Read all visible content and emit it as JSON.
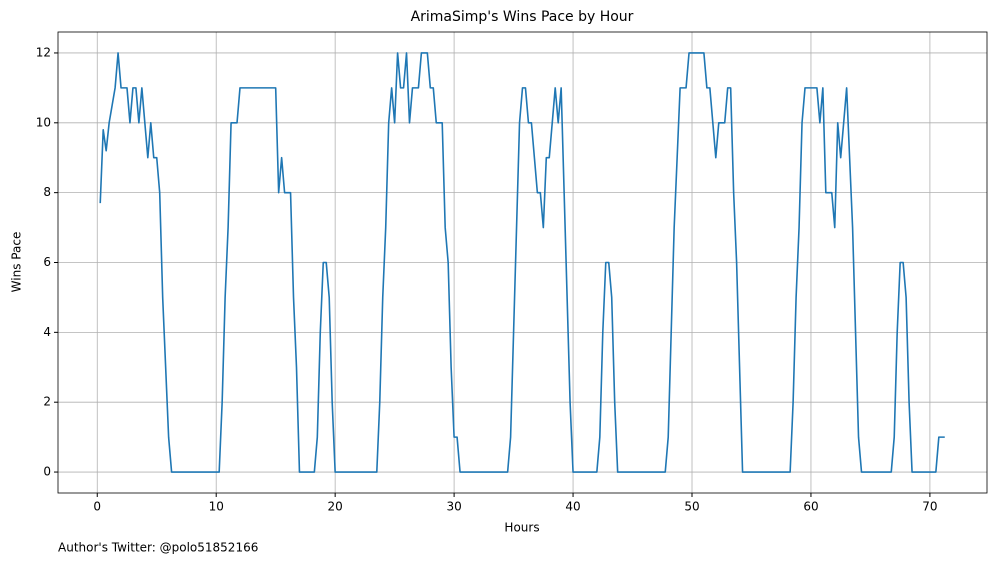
{
  "chart_data": {
    "type": "line",
    "title": "ArimaSimp's Wins Pace by Hour",
    "xlabel": "Hours",
    "ylabel": "Wins Pace",
    "footer": "Author's Twitter: @polo51852166",
    "color": "#1f77b4",
    "grid": true,
    "xlim": [
      -3.3,
      74.8
    ],
    "ylim": [
      -0.6,
      12.6
    ],
    "xticks": [
      0,
      10,
      20,
      30,
      40,
      50,
      60,
      70
    ],
    "yticks": [
      0,
      2,
      4,
      6,
      8,
      10,
      12
    ],
    "x": [
      0.25,
      0.5,
      0.75,
      1.0,
      1.25,
      1.5,
      1.75,
      2.0,
      2.5,
      2.75,
      3.0,
      3.25,
      3.5,
      3.75,
      4.0,
      4.25,
      4.5,
      4.75,
      5.0,
      5.25,
      5.5,
      5.75,
      6.0,
      6.25,
      10.25,
      10.5,
      10.75,
      11.0,
      11.25,
      11.75,
      12.0,
      15.0,
      15.25,
      15.5,
      15.75,
      16.25,
      16.5,
      16.75,
      17.0,
      18.25,
      18.5,
      18.75,
      19.0,
      19.25,
      19.5,
      19.75,
      20.0,
      23.5,
      23.75,
      24.0,
      24.25,
      24.5,
      24.75,
      25.0,
      25.25,
      25.5,
      25.75,
      26.0,
      26.25,
      26.5,
      27.0,
      27.25,
      27.75,
      28.0,
      28.25,
      28.5,
      29.0,
      29.25,
      29.5,
      29.75,
      30.0,
      30.25,
      30.5,
      34.5,
      34.75,
      35.0,
      35.25,
      35.5,
      35.75,
      36.0,
      36.25,
      36.5,
      36.75,
      37.0,
      37.25,
      37.5,
      37.75,
      38.0,
      38.25,
      38.5,
      38.75,
      39.0,
      39.25,
      39.5,
      39.75,
      40.0,
      42.0,
      42.25,
      42.5,
      42.75,
      43.0,
      43.25,
      43.5,
      43.75,
      47.75,
      48.0,
      48.25,
      48.5,
      48.75,
      49.0,
      49.5,
      49.75,
      51.0,
      51.25,
      51.5,
      51.75,
      52.0,
      52.25,
      52.75,
      53.0,
      53.25,
      53.5,
      53.75,
      54.0,
      54.25,
      58.25,
      58.5,
      58.75,
      59.0,
      59.25,
      59.5,
      60.5,
      60.75,
      61.0,
      61.25,
      61.75,
      62.0,
      62.25,
      62.5,
      62.75,
      63.0,
      63.25,
      63.5,
      63.75,
      64.0,
      64.25,
      66.75,
      67.0,
      67.25,
      67.5,
      67.75,
      68.0,
      68.25,
      68.5,
      70.5,
      70.75,
      71.25
    ],
    "values": [
      7.7,
      9.8,
      9.2,
      10,
      10.5,
      11,
      12,
      11,
      11,
      10,
      11,
      11,
      10,
      11,
      10,
      9,
      10,
      9,
      9,
      8,
      5,
      3,
      1,
      0,
      0,
      2,
      5,
      7,
      10,
      10,
      11,
      11,
      8,
      9,
      8,
      8,
      5,
      3,
      0,
      0,
      1,
      4,
      6,
      6,
      5,
      2,
      0,
      0,
      2,
      5,
      7,
      10,
      11,
      10,
      12,
      11,
      11,
      12,
      10,
      11,
      11,
      12,
      12,
      11,
      11,
      10,
      10,
      7,
      6,
      3,
      1,
      1,
      0,
      0,
      1,
      4,
      7,
      10,
      11,
      11,
      10,
      10,
      9,
      8,
      8,
      7,
      9,
      9,
      10,
      11,
      10,
      11,
      8,
      5,
      2,
      0,
      0,
      1,
      4,
      6,
      6,
      5,
      2,
      0,
      0,
      1,
      4,
      7,
      9,
      11,
      11,
      12,
      12,
      11,
      11,
      10,
      9,
      10,
      10,
      11,
      11,
      8,
      6,
      3,
      0,
      0,
      2,
      5,
      7,
      10,
      11,
      11,
      10,
      11,
      8,
      8,
      7,
      10,
      9,
      10,
      11,
      9,
      7,
      4,
      1,
      0,
      0,
      1,
      4,
      6,
      6,
      5,
      2,
      0,
      0,
      1,
      1
    ]
  }
}
